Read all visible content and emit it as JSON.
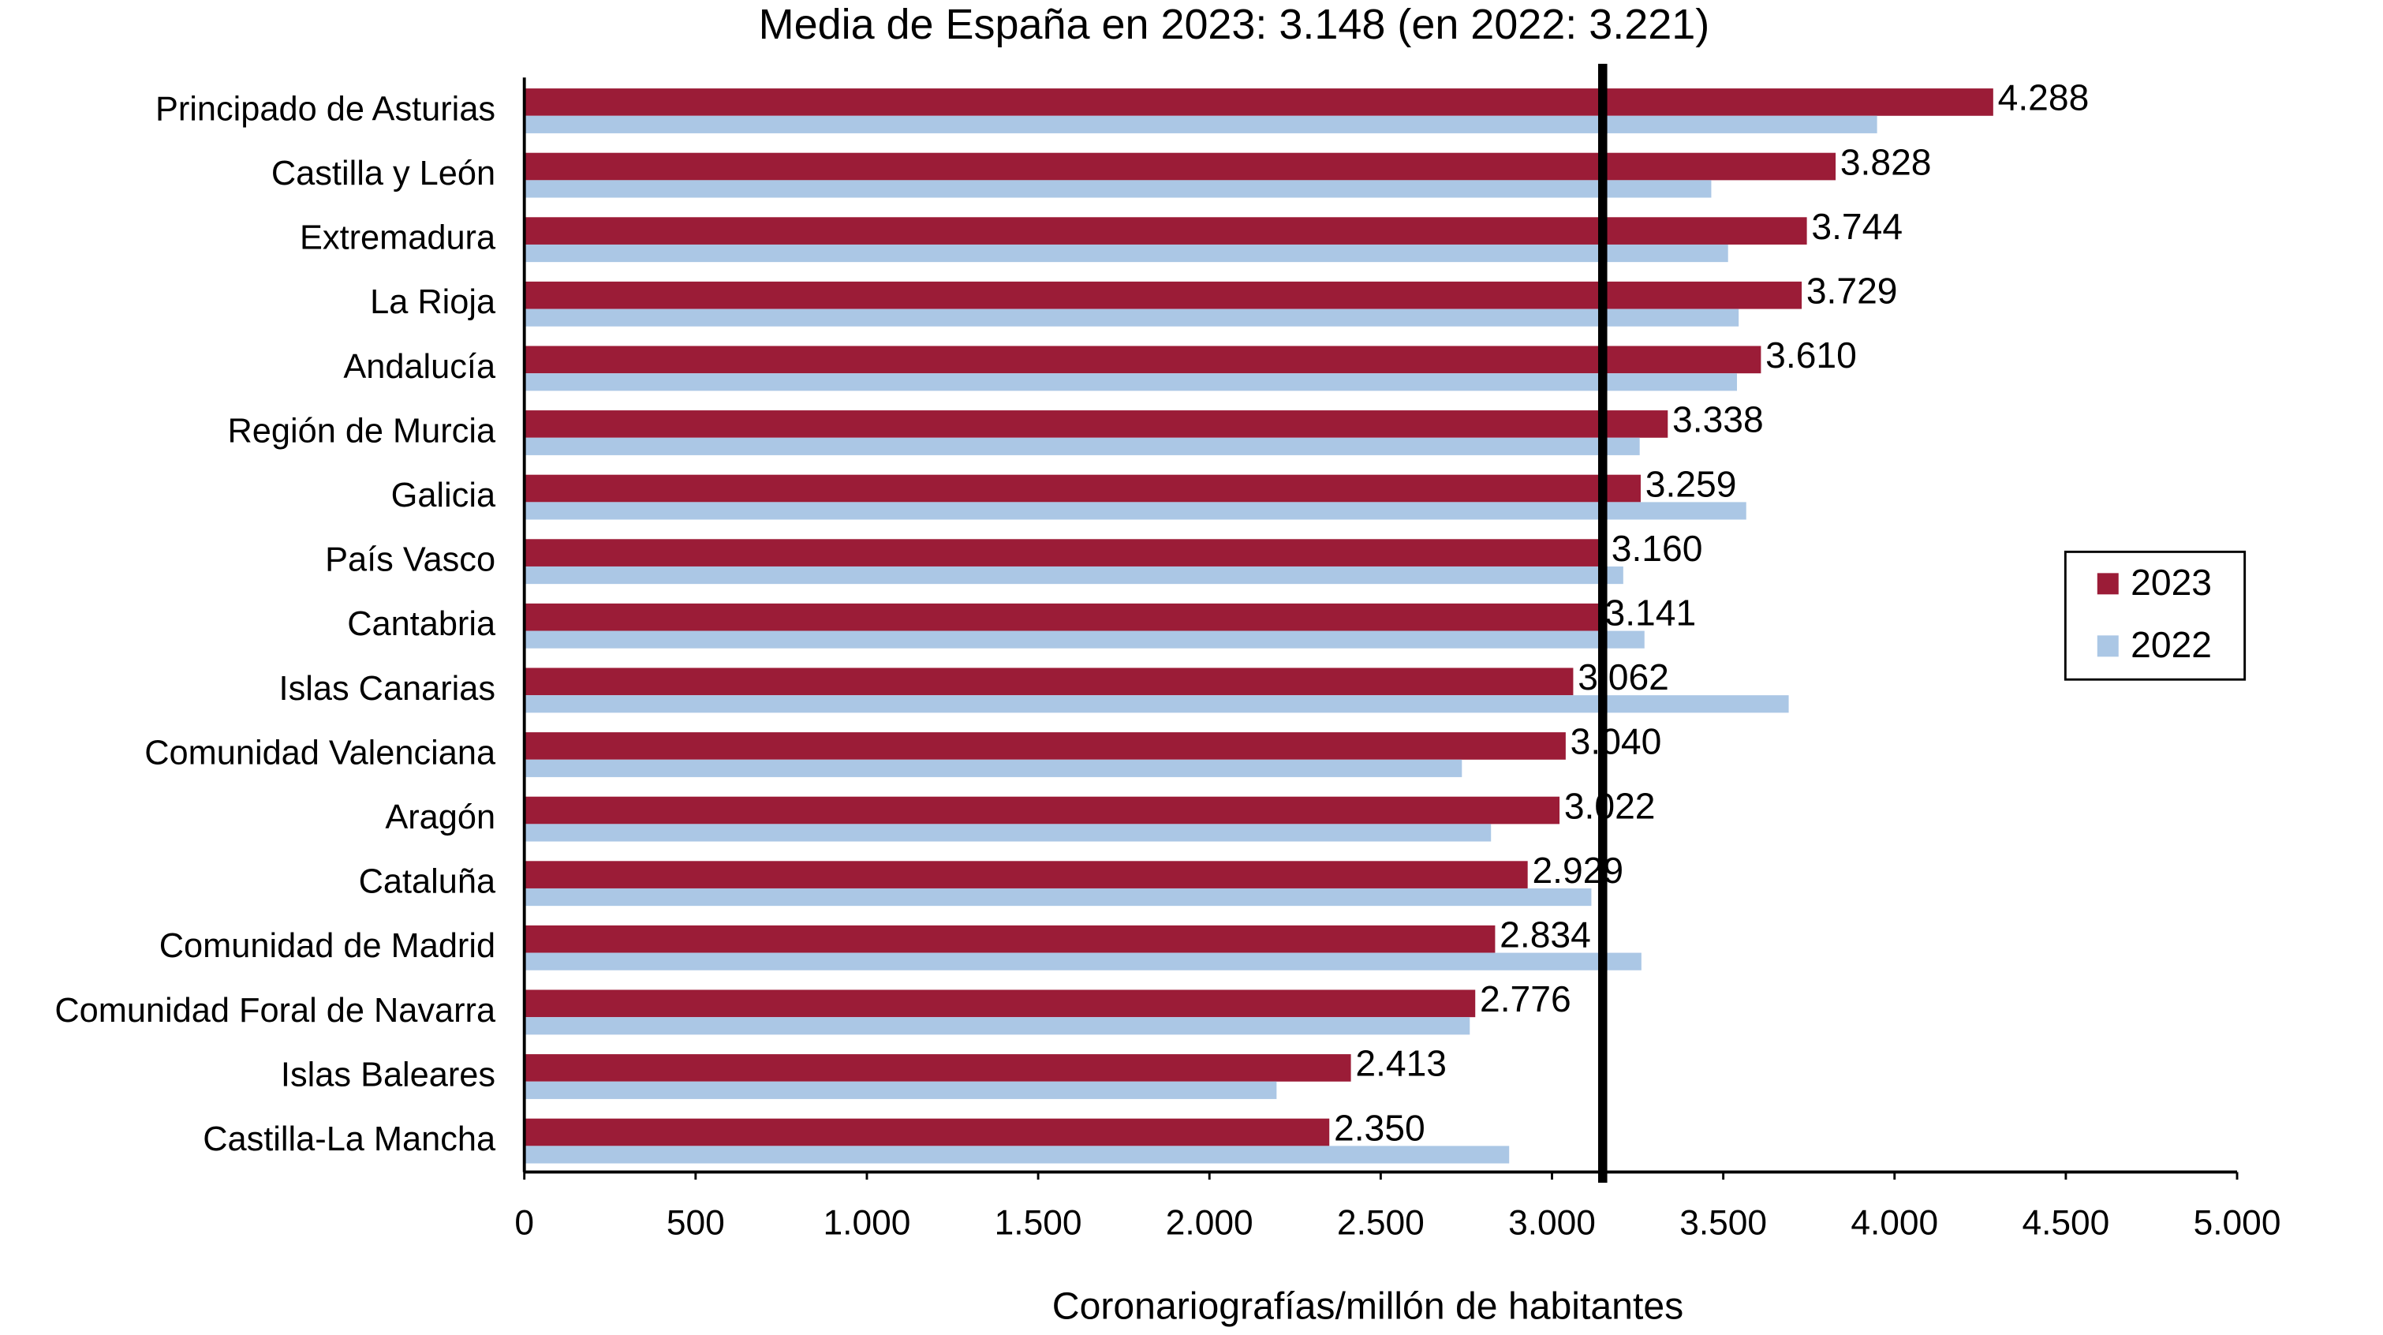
{
  "chart_data": {
    "type": "bar",
    "orientation": "horizontal",
    "title": "Media de España en 2023: 3.148 (en 2022: 3.221)",
    "xlabel": "Coronariografías/millón de habitantes",
    "categories": [
      "Principado de Asturias",
      "Castilla y León",
      "Extremadura",
      "La Rioja",
      "Andalucía",
      "Región de Murcia",
      "Galicia",
      "País Vasco",
      "Cantabria",
      "Islas Canarias",
      "Comunidad Valenciana",
      "Aragón",
      "Cataluña",
      "Comunidad de Madrid",
      "Comunidad Foral de Navarra",
      "Islas Baleares",
      "Castilla-La Mancha"
    ],
    "series": [
      {
        "name": "2023",
        "color": "#9b1c37",
        "values": [
          4288,
          3828,
          3744,
          3729,
          3610,
          3338,
          3259,
          3160,
          3141,
          3062,
          3040,
          3022,
          2929,
          2834,
          2776,
          2413,
          2350
        ],
        "value_labels": [
          "4.288",
          "3.828",
          "3.744",
          "3.729",
          "3.610",
          "3.338",
          "3.259",
          "3.160",
          "3.141",
          "3.062",
          "3.040",
          "3.022",
          "2.929",
          "2.834",
          "2.776",
          "2.413",
          "2.350"
        ]
      },
      {
        "name": "2022",
        "color": "#abc7e5",
        "values": [
          3949,
          3465,
          3514,
          3545,
          3540,
          3256,
          3567,
          3208,
          3270,
          3691,
          2737,
          2822,
          3115,
          3261,
          2760,
          2196,
          2875
        ]
      }
    ],
    "mean_line": 3148,
    "xlim": [
      0,
      5000
    ],
    "xticks": [
      0,
      500,
      {
        "value": 1000,
        "label": "1.000"
      },
      {
        "value": 1500,
        "label": "1.500"
      },
      {
        "value": 2000,
        "label": "2.000"
      },
      {
        "value": 2500,
        "label": "2.500"
      },
      {
        "value": 3000,
        "label": "3.000"
      },
      {
        "value": 3500,
        "label": "3.500"
      },
      {
        "value": 4000,
        "label": "4.000"
      },
      {
        "value": 4500,
        "label": "4.500"
      },
      {
        "value": 5000,
        "label": "5.000"
      }
    ],
    "legend": "right"
  }
}
